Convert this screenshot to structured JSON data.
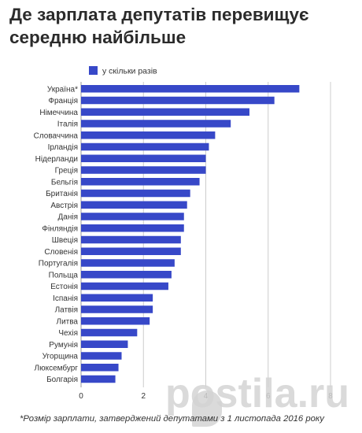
{
  "header": {
    "title_line1": "Де зарплата депутатів перевищує",
    "title_line2": "середню найбільше"
  },
  "footnote": "*Розмір зарплати, затверджений депутатами з 1 листопада 2016 року",
  "watermark": "postila.ru",
  "colors": {
    "bar": "#3748c8",
    "grid": "#cccccc",
    "text": "#333333"
  },
  "chart_data": {
    "type": "bar",
    "orientation": "horizontal",
    "legend": {
      "label": "у скільки разів",
      "position": "top-left"
    },
    "categories": [
      "Україна*",
      "Франція",
      "Німеччина",
      "Італія",
      "Словаччина",
      "Ірландія",
      "Нідерланди",
      "Греція",
      "Бельгія",
      "Британія",
      "Австрія",
      "Данія",
      "Фінляндія",
      "Швеція",
      "Словенія",
      "Португалія",
      "Польща",
      "Естонія",
      "Іспанія",
      "Латвія",
      "Литва",
      "Чехія",
      "Румунія",
      "Угорщина",
      "Люксембург",
      "Болгарія"
    ],
    "series": [
      {
        "name": "у скільки разів",
        "values": [
          7.0,
          6.2,
          5.4,
          4.8,
          4.3,
          4.1,
          4.0,
          4.0,
          3.8,
          3.5,
          3.4,
          3.3,
          3.3,
          3.2,
          3.2,
          3.0,
          2.9,
          2.8,
          2.3,
          2.3,
          2.2,
          1.8,
          1.5,
          1.3,
          1.2,
          1.1
        ]
      }
    ],
    "xlim": [
      0,
      8
    ],
    "xticks": [
      "0",
      "2",
      "4",
      "6",
      "8"
    ],
    "grid": true
  }
}
